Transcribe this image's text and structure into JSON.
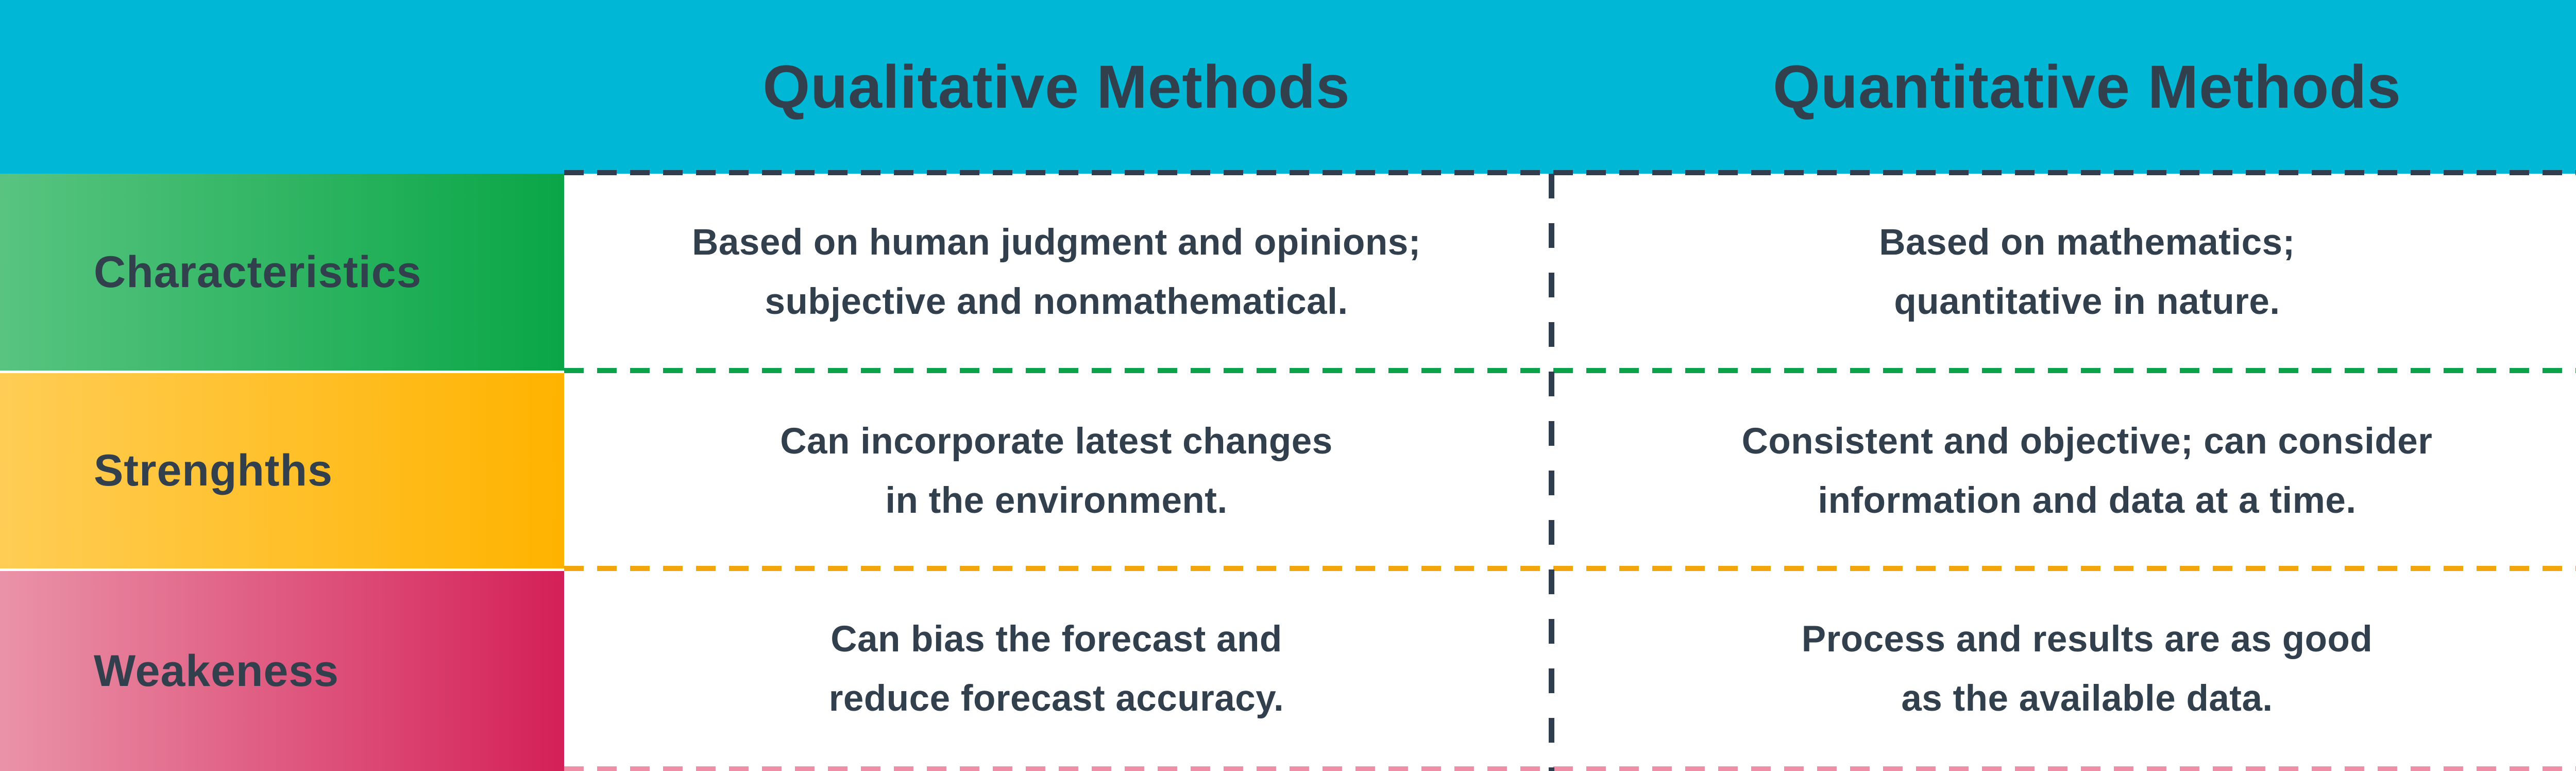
{
  "table": {
    "column_headers": [
      {
        "label": "Qualitative Methods"
      },
      {
        "label": "Quantitative Methods"
      }
    ],
    "rows": [
      {
        "label": "Characteristics",
        "qualitative": {
          "line1": "Based on human judgment and opinions;",
          "line2": "subjective and nonmathematical."
        },
        "quantitative": {
          "line1": "Based on mathematics;",
          "line2": "quantitative in nature."
        }
      },
      {
        "label": "Strenghths",
        "qualitative": {
          "line1": "Can incorporate latest changes",
          "line2": "in the environment."
        },
        "quantitative": {
          "line1": "Consistent and objective; can consider",
          "line2": "information and data at a time."
        }
      },
      {
        "label": "Weakeness",
        "qualitative": {
          "line1": "Can bias the forecast and",
          "line2": "reduce forecast accuracy."
        },
        "quantitative": {
          "line1": "Process and results are as good",
          "line2": "as the available data."
        }
      }
    ]
  },
  "colors": {
    "header-bg": "#00b7d6",
    "text": "#32404e",
    "navy-dash": "#2f3d4e",
    "green-dash": "#0ca24b",
    "amber-dash": "#f3a60c",
    "pink-dash": "#ee8fa7",
    "green-l": "#58c480",
    "green-r": "#09a646",
    "yellow-l": "#ffcd55",
    "yellow-r": "#ffb300",
    "pink-l": "#ea93a8",
    "pink-r": "#d42058"
  }
}
